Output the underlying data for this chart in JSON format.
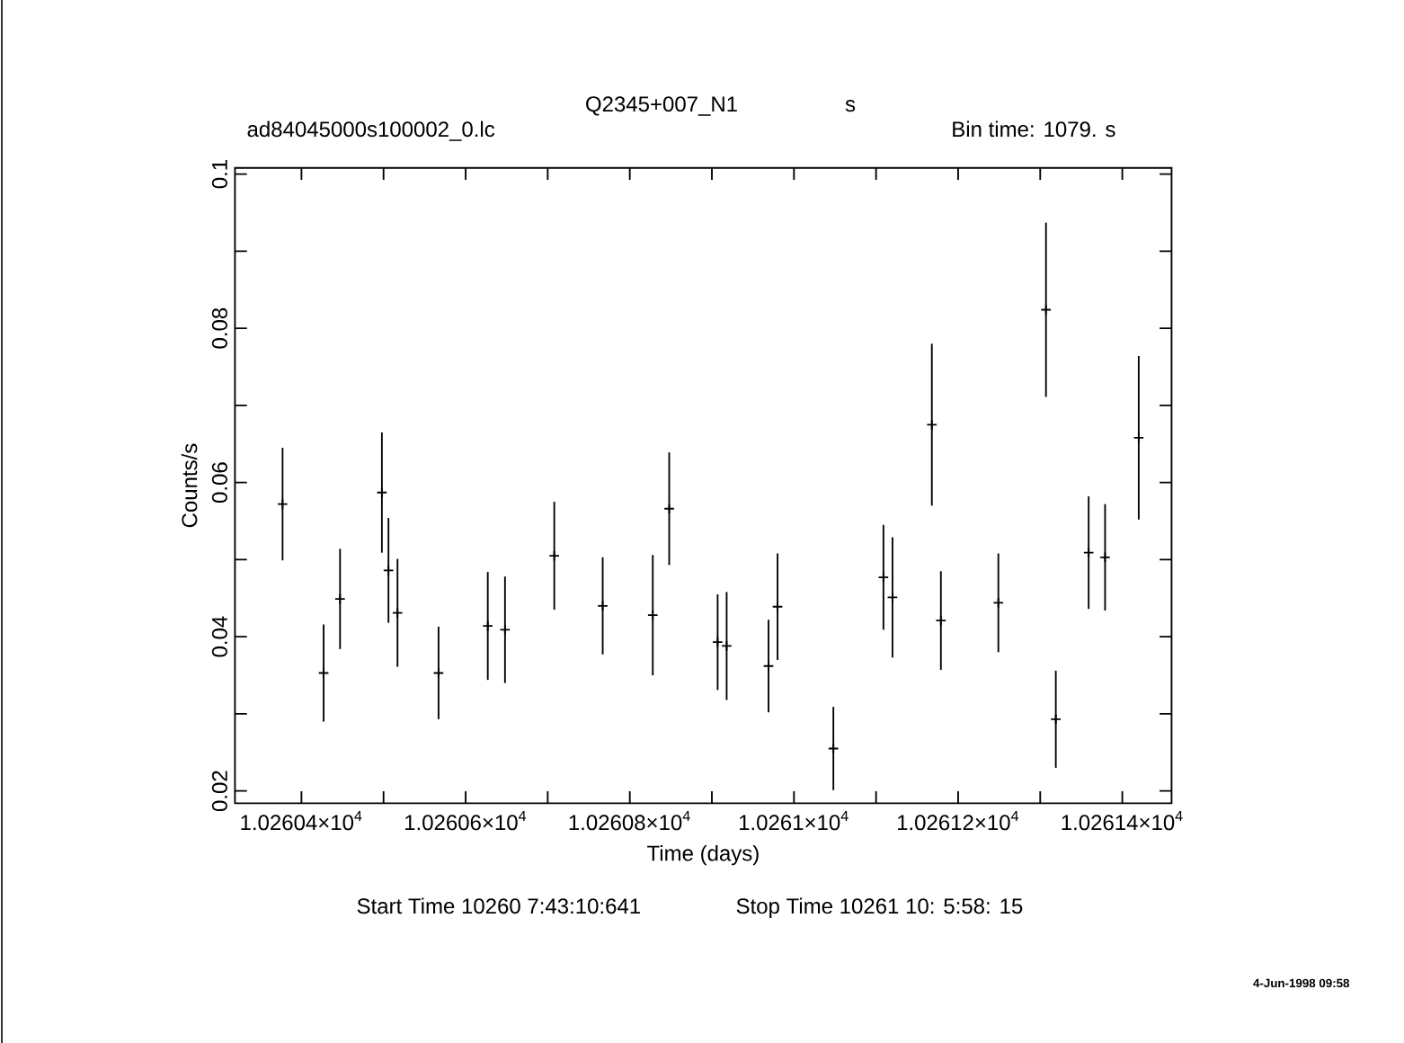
{
  "chart_data": {
    "type": "scatter",
    "title": "Q2345+007_N1",
    "subtitle": "s",
    "xlabel": "Time (days)",
    "ylabel": "Counts/s",
    "annotations": [
      "ad84045000s100002_0.lc",
      "Bin time:    1079.    s",
      "Start Time 10260  7:43:10:641",
      "Stop Time 10261 10: 5:58: 15",
      "4-Jun-1998 09:58"
    ],
    "x": [
      10260.377,
      10260.427,
      10260.447,
      10260.498,
      10260.506,
      10260.517,
      10260.567,
      10260.627,
      10260.648,
      10260.708,
      10260.767,
      10260.828,
      10260.848,
      10260.907,
      10260.918,
      10260.969,
      10260.98,
      10261.048,
      10261.109,
      10261.12,
      10261.168,
      10261.179,
      10261.249,
      10261.307,
      10261.319,
      10261.359,
      10261.379,
      10261.42
    ],
    "values": [
      0.0572,
      0.0353,
      0.0449,
      0.0587,
      0.0486,
      0.0431,
      0.0353,
      0.0414,
      0.0409,
      0.0505,
      0.044,
      0.0428,
      0.0566,
      0.0393,
      0.0388,
      0.0362,
      0.0439,
      0.0255,
      0.0477,
      0.0451,
      0.0675,
      0.0421,
      0.0444,
      0.0824,
      0.0293,
      0.0509,
      0.0503,
      0.0658
    ],
    "errors": [
      0.0073,
      0.0063,
      0.0065,
      0.0078,
      0.0068,
      0.007,
      0.006,
      0.007,
      0.0069,
      0.007,
      0.0063,
      0.0078,
      0.0073,
      0.0062,
      0.007,
      0.006,
      0.0069,
      0.0054,
      0.0068,
      0.0078,
      0.0105,
      0.0064,
      0.0064,
      0.0113,
      0.0063,
      0.0073,
      0.0069,
      0.0106
    ],
    "color": "#000000",
    "marker": "cross",
    "xlim": [
      10260.319,
      10261.46
    ],
    "ylim": [
      0.0184,
      0.1008
    ],
    "xticks": [
      {
        "value": 10260.4,
        "label": "1.02604×10$^{4}$"
      },
      {
        "value": 10260.5,
        "label": null
      },
      {
        "value": 10260.6,
        "label": "1.02606×10$^{4}$"
      },
      {
        "value": 10260.7,
        "label": null
      },
      {
        "value": 10260.8,
        "label": "1.02608×10$^{4}$"
      },
      {
        "value": 10260.9,
        "label": null
      },
      {
        "value": 10261.0,
        "label": "1.0261×10$^{4}$"
      },
      {
        "value": 10261.1,
        "label": null
      },
      {
        "value": 10261.2,
        "label": "1.02612×10$^{4}$"
      },
      {
        "value": 10261.3,
        "label": null
      },
      {
        "value": 10261.4,
        "label": "1.02614×10$^{4}$"
      }
    ],
    "yticks": [
      0.02,
      {
        "value": 0.03,
        "label": null
      },
      0.04,
      {
        "value": 0.05,
        "label": null
      },
      0.06,
      {
        "value": 0.07,
        "label": null
      },
      0.08,
      {
        "value": 0.09,
        "label": null
      },
      0.1
    ]
  }
}
